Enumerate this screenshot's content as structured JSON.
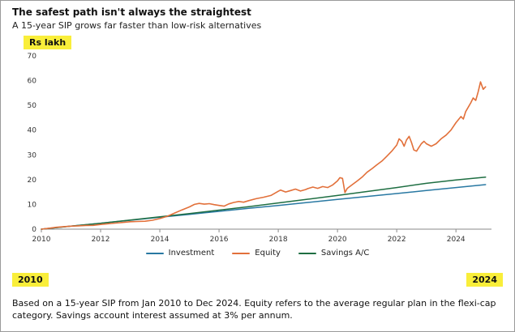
{
  "header": {
    "title": "The safest path isn't always the straightest",
    "subtitle": "A 15-year SIP grows far faster than low-risk alternatives"
  },
  "unit_label": "Rs lakh",
  "footer": {
    "start_year": "2010",
    "end_year": "2024",
    "note": "Based on a 15-year SIP from Jan 2010 to Dec 2024. Equity refers to the average regular plan in the flexi-cap category. Savings account interest assumed at 3% per annum."
  },
  "colors": {
    "highlight": "#f9ee3a",
    "investment": "#2878a2",
    "equity": "#e2703a",
    "savings": "#1e6e42",
    "axis": "#8a8a8a"
  },
  "chart_data": {
    "type": "line",
    "title": "The safest path isn't always the straightest",
    "ylabel": "Rs lakh",
    "xlabel": "",
    "ylim": [
      0,
      70
    ],
    "xlim": [
      2010,
      2025.2
    ],
    "yticks": [
      0,
      10,
      20,
      30,
      40,
      50,
      60,
      70
    ],
    "xticks": [
      2010,
      2012,
      2014,
      2016,
      2018,
      2020,
      2022,
      2024
    ],
    "grid": false,
    "legend_position": "bottom",
    "series": [
      {
        "name": "Investment",
        "color": "#2878a2",
        "x": [
          2010,
          2011,
          2012,
          2013,
          2014,
          2015,
          2016,
          2017,
          2018,
          2019,
          2020,
          2021,
          2022,
          2023,
          2024,
          2025
        ],
        "values": [
          0,
          1.2,
          2.4,
          3.6,
          4.8,
          6.0,
          7.2,
          8.4,
          9.6,
          10.8,
          12.0,
          13.2,
          14.4,
          15.6,
          16.8,
          18.0
        ]
      },
      {
        "name": "Equity",
        "color": "#e2703a",
        "x": [
          2010.0,
          2010.25,
          2010.5,
          2010.75,
          2011.0,
          2011.25,
          2011.5,
          2011.75,
          2012.0,
          2012.25,
          2012.5,
          2012.75,
          2013.0,
          2013.25,
          2013.5,
          2013.75,
          2014.0,
          2014.25,
          2014.5,
          2014.75,
          2015.0,
          2015.17,
          2015.33,
          2015.5,
          2015.67,
          2015.83,
          2016.0,
          2016.17,
          2016.33,
          2016.5,
          2016.67,
          2016.83,
          2017.0,
          2017.25,
          2017.5,
          2017.75,
          2018.0,
          2018.08,
          2018.25,
          2018.42,
          2018.58,
          2018.75,
          2018.92,
          2019.0,
          2019.17,
          2019.33,
          2019.5,
          2019.67,
          2019.83,
          2020.0,
          2020.08,
          2020.17,
          2020.25,
          2020.33,
          2020.5,
          2020.67,
          2020.83,
          2021.0,
          2021.17,
          2021.33,
          2021.5,
          2021.67,
          2021.83,
          2022.0,
          2022.08,
          2022.17,
          2022.25,
          2022.33,
          2022.42,
          2022.5,
          2022.58,
          2022.67,
          2022.75,
          2022.83,
          2022.92,
          2023.0,
          2023.17,
          2023.33,
          2023.5,
          2023.67,
          2023.83,
          2024.0,
          2024.17,
          2024.25,
          2024.33,
          2024.5,
          2024.58,
          2024.67,
          2024.75,
          2024.83,
          2024.92,
          2025.0
        ],
        "values": [
          0.0,
          0.35,
          0.75,
          1.0,
          1.2,
          1.35,
          1.5,
          1.55,
          1.9,
          2.2,
          2.45,
          2.7,
          3.0,
          3.1,
          3.2,
          3.6,
          4.3,
          5.2,
          6.5,
          7.8,
          9.0,
          10.0,
          10.4,
          10.1,
          10.3,
          9.9,
          9.6,
          9.3,
          10.2,
          10.8,
          11.2,
          10.9,
          11.5,
          12.3,
          12.9,
          13.6,
          15.3,
          15.8,
          15.0,
          15.6,
          16.2,
          15.4,
          16.0,
          16.4,
          17.0,
          16.5,
          17.2,
          16.8,
          17.8,
          19.5,
          20.8,
          20.5,
          14.8,
          16.5,
          18.0,
          19.5,
          21.0,
          23.0,
          24.5,
          26.0,
          27.5,
          29.5,
          31.5,
          34.0,
          36.5,
          35.5,
          33.5,
          36.0,
          37.5,
          35.0,
          32.0,
          31.5,
          33.0,
          34.5,
          35.5,
          34.5,
          33.5,
          34.5,
          36.5,
          38.0,
          40.0,
          43.0,
          45.5,
          44.5,
          47.5,
          51.0,
          53.0,
          52.0,
          55.5,
          59.5,
          56.5,
          57.5
        ]
      },
      {
        "name": "Savings A/C",
        "color": "#1e6e42",
        "x": [
          2010,
          2011,
          2012,
          2013,
          2014,
          2015,
          2016,
          2017,
          2018,
          2019,
          2020,
          2021,
          2022,
          2023,
          2024,
          2025
        ],
        "values": [
          0,
          1.2,
          2.4,
          3.7,
          5.0,
          6.3,
          7.7,
          9.1,
          10.6,
          12.1,
          13.6,
          15.2,
          16.8,
          18.5,
          19.9,
          21.0
        ]
      }
    ]
  }
}
